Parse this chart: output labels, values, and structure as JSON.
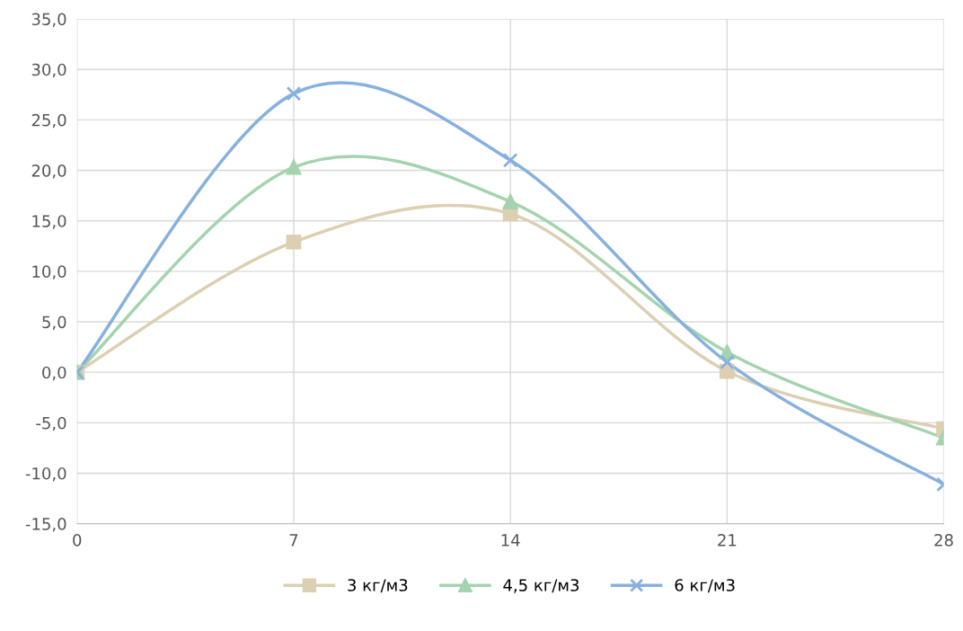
{
  "chart_data": {
    "type": "line",
    "x": [
      0,
      7,
      14,
      21,
      28
    ],
    "series": [
      {
        "name": "3 кг/м3",
        "color": "#dccfb2",
        "marker": "square",
        "values": [
          0.0,
          12.9,
          15.7,
          0.1,
          -5.6
        ]
      },
      {
        "name": "4,5 кг/м3",
        "color": "#a3d4ad",
        "marker": "triangle",
        "values": [
          0.0,
          20.3,
          16.9,
          2.0,
          -6.5
        ]
      },
      {
        "name": "6 кг/м3",
        "color": "#86b0de",
        "marker": "cross",
        "values": [
          0.0,
          27.6,
          21.0,
          1.0,
          -11.1
        ]
      }
    ],
    "xlim": [
      0,
      28
    ],
    "xticks": [
      0,
      7,
      14,
      21,
      28
    ],
    "ylim": [
      -15,
      35
    ],
    "yticks": [
      {
        "value": -15,
        "label": "-15,0"
      },
      {
        "value": -10,
        "label": "-10,0"
      },
      {
        "value": -5,
        "label": "-5,0"
      },
      {
        "value": 0,
        "label": "0,0"
      },
      {
        "value": 5,
        "label": "5,0"
      },
      {
        "value": 10,
        "label": "10,0"
      },
      {
        "value": 15,
        "label": "15,0"
      },
      {
        "value": 20,
        "label": "20,0"
      },
      {
        "value": 25,
        "label": "25,0"
      },
      {
        "value": 30,
        "label": "30,0"
      },
      {
        "value": 35,
        "label": "35,0"
      }
    ],
    "grid": true,
    "legend": "bottom",
    "line_style": "solid"
  }
}
